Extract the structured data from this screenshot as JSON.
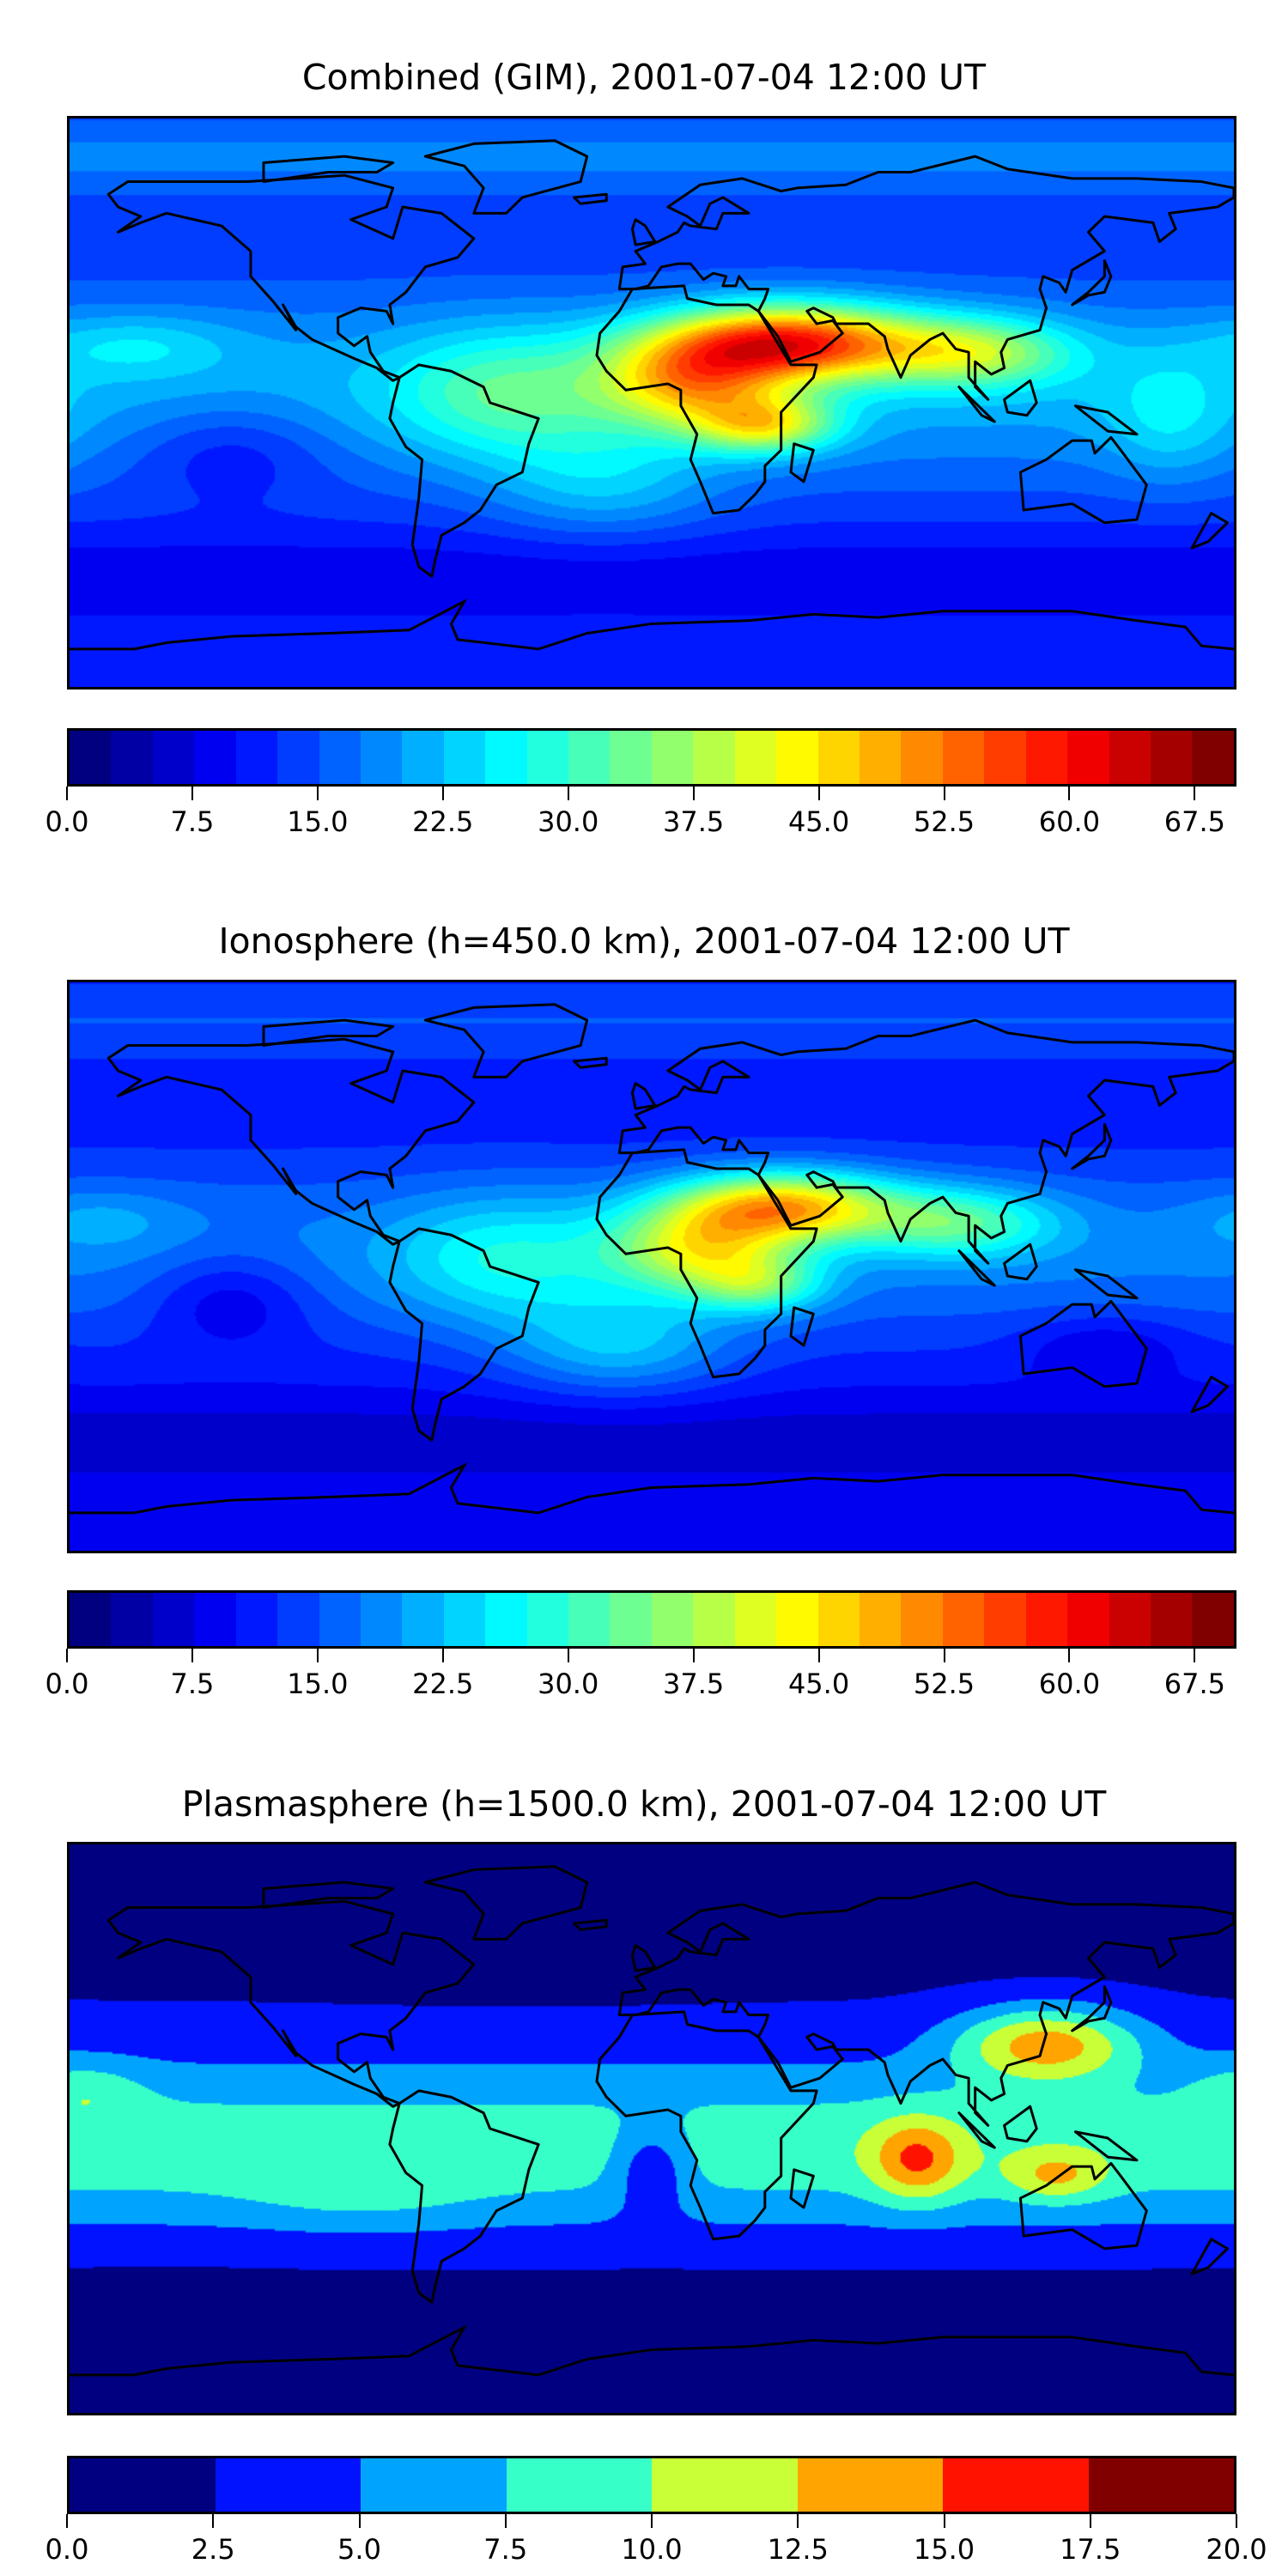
{
  "chart_data": [
    {
      "type": "heatmap",
      "title": "Combined (GIM), 2001-07-04 12:00 UT",
      "projection": "plate-carree global map with coastlines",
      "levels_min": 0,
      "levels_max": 70,
      "level_step": 2.5,
      "colormap": "jet",
      "colorbar_ticks": [
        "0.0",
        "7.5",
        "15.0",
        "22.5",
        "30.0",
        "37.5",
        "45.0",
        "52.5",
        "60.0",
        "67.5"
      ],
      "features": {
        "max_region": "Arabian Peninsula / NE Africa (~62-65)",
        "min_region": "high latitudes & south Pacific (~10-15)"
      }
    },
    {
      "type": "heatmap",
      "title": "Ionosphere  (h=450.0 km), 2001-07-04 12:00 UT",
      "projection": "plate-carree global map with coastlines",
      "levels_min": 0,
      "levels_max": 70,
      "level_step": 2.5,
      "colormap": "jet",
      "colorbar_ticks": [
        "0.0",
        "7.5",
        "15.0",
        "22.5",
        "30.0",
        "37.5",
        "45.0",
        "52.5",
        "60.0",
        "67.5"
      ],
      "features": {
        "max_region": "Arabian Peninsula / central Africa (~55)",
        "min_region": "east Pacific & high latitudes (~5-12)"
      }
    },
    {
      "type": "heatmap",
      "title": "Plasmasphere (h=1500.0 km), 2001-07-04 12:00 UT",
      "projection": "plate-carree global map with coastlines",
      "levels_min": 0,
      "levels_max": 20,
      "level_step": 2.5,
      "colormap": "jet",
      "colorbar_ticks": [
        "0.0",
        "2.5",
        "5.0",
        "7.5",
        "10.0",
        "12.5",
        "15.0",
        "17.5",
        "20.0"
      ],
      "features": {
        "max_region": "East China (~17.5)",
        "min_region": "North Atlantic / Southern Ocean (~0-2.5)"
      }
    }
  ]
}
